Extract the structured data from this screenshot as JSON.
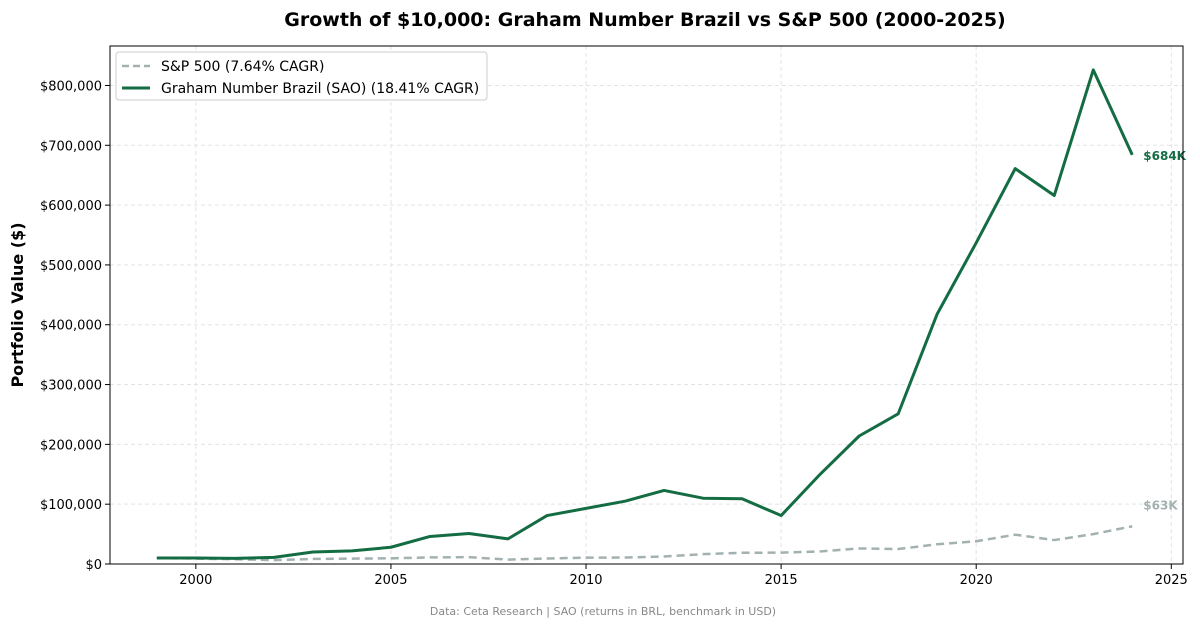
{
  "chart_data": {
    "type": "line",
    "title": "Growth of $10,000: Graham Number Brazil vs S&P 500 (2000-2025)",
    "xlabel": "",
    "ylabel": "Portfolio Value ($)",
    "footnote": "Data: Ceta Research | SAO (returns in BRL, benchmark in USD)",
    "xlim": [
      1997.8,
      2025.3
    ],
    "ylim": [
      0,
      866000
    ],
    "xticks": [
      2000,
      2005,
      2010,
      2015,
      2020,
      2025
    ],
    "yticks": [
      0,
      100000,
      200000,
      300000,
      400000,
      500000,
      600000,
      700000,
      800000
    ],
    "ytick_labels": [
      "$0",
      "$100,000",
      "$200,000",
      "$300,000",
      "$400,000",
      "$500,000",
      "$600,000",
      "$700,000",
      "$800,000"
    ],
    "grid": true,
    "legend_position": "top-left",
    "x": [
      1999,
      2000,
      2001,
      2002,
      2003,
      2004,
      2005,
      2006,
      2007,
      2008,
      2009,
      2010,
      2011,
      2012,
      2013,
      2014,
      2015,
      2016,
      2017,
      2018,
      2019,
      2020,
      2021,
      2022,
      2023,
      2024
    ],
    "series": [
      {
        "name": "S&P 500 (7.64% CAGR)",
        "color": "#a3b1b1",
        "style": "dashed",
        "end_label": "$63K",
        "values": [
          10000,
          9000,
          8000,
          6500,
          8500,
          9000,
          9500,
          11000,
          11500,
          7300,
          9200,
          10600,
          10800,
          12500,
          16500,
          18800,
          19000,
          21000,
          26000,
          25000,
          33000,
          38000,
          49000,
          40000,
          50000,
          63000
        ]
      },
      {
        "name": "Graham Number Brazil (SAO) (18.41% CAGR)",
        "color": "#146c43",
        "style": "solid",
        "end_label": "$684K",
        "values": [
          10000,
          10000,
          9500,
          11000,
          20000,
          22000,
          28000,
          46000,
          51000,
          42000,
          81000,
          93000,
          105000,
          123000,
          110000,
          109000,
          81000,
          150000,
          214000,
          251000,
          418000,
          537000,
          661000,
          616000,
          826000,
          684000
        ]
      }
    ]
  }
}
